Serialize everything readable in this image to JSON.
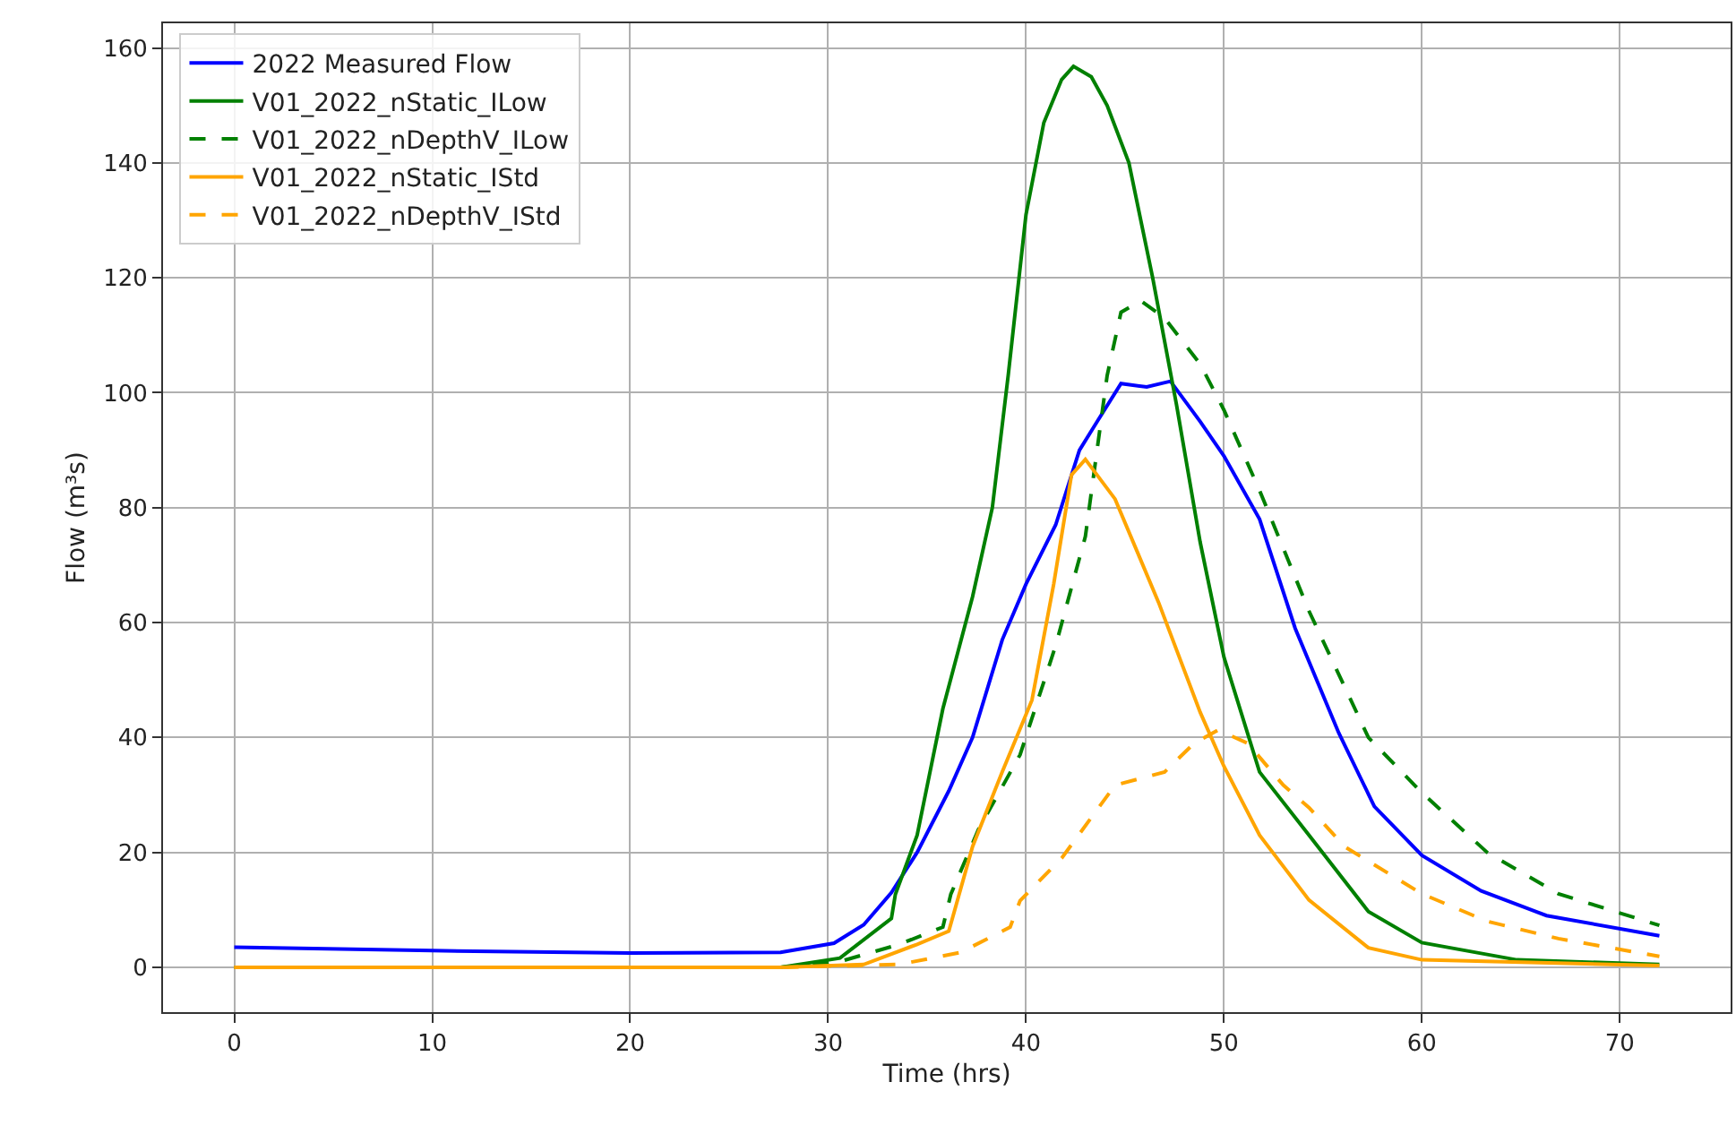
{
  "chart_data": {
    "type": "line",
    "xlabel": "Time (hrs)",
    "ylabel": "Flow (m³s)",
    "xlim": [
      -3.6,
      75.6
    ],
    "ylim": [
      -7.8,
      164.3
    ],
    "xticks": [
      0,
      10,
      20,
      30,
      40,
      50,
      60,
      70
    ],
    "yticks": [
      0,
      20,
      40,
      60,
      80,
      100,
      120,
      140,
      160
    ],
    "grid": true,
    "legend": "top left",
    "marker": "none",
    "series": [
      {
        "name": "2022 Measured Flow",
        "color": "#0000ff",
        "line_style": "solid",
        "x": [
          0,
          10,
          20,
          27.6,
          30.3,
          31.8,
          33.2,
          34.5,
          36.1,
          37.3,
          38.8,
          40,
          41.5,
          42.7,
          43.6,
          44.8,
          46.1,
          47.3,
          48.8,
          50,
          51.8,
          53.6,
          55.8,
          57.6,
          60,
          63,
          66.3,
          72
        ],
        "values": [
          3.5,
          2.9,
          2.5,
          2.6,
          4.2,
          7.4,
          13,
          20,
          30.7,
          40,
          57,
          66.7,
          77,
          90,
          95,
          101.6,
          101,
          102,
          95,
          89,
          78,
          59,
          40.8,
          28,
          19.5,
          13.3,
          9,
          5.5
        ]
      },
      {
        "name": "V01_2022_nStatic_ILow",
        "color": "#008000",
        "line_style": "solid",
        "x": [
          0,
          27.6,
          30.6,
          33.2,
          33.4,
          34.5,
          35.8,
          37.3,
          38.3,
          39.1,
          40,
          40.9,
          41.8,
          42.4,
          43.3,
          44.1,
          45.2,
          46.4,
          47.6,
          48.8,
          50,
          51.8,
          54.3,
          57.3,
          60,
          64.8,
          72
        ],
        "values": [
          0,
          0,
          1.6,
          8.5,
          12.7,
          23,
          45,
          64.5,
          80,
          103,
          131,
          147,
          154.5,
          156.8,
          155,
          150,
          140,
          120,
          98,
          74,
          54,
          34,
          23,
          9.7,
          4.3,
          1.3,
          0.5
        ]
      },
      {
        "name": "V01_2022_nDepthV_ILow",
        "color": "#008000",
        "line_style": "dashed",
        "x": [
          27.6,
          30.6,
          33.6,
          35.8,
          36.2,
          37.6,
          39.7,
          41.5,
          43,
          44.1,
          44.8,
          45.8,
          47,
          48.8,
          50,
          51.8,
          54.3,
          57.3,
          60,
          63.3,
          66.9,
          72
        ],
        "values": [
          0,
          1,
          4,
          7,
          12.7,
          24,
          37,
          56,
          75,
          103,
          114,
          116,
          113,
          105,
          97,
          83,
          62,
          40,
          30.4,
          20,
          12.8,
          7.3
        ]
      },
      {
        "name": "V01_2022_nStatic_IStd",
        "color": "#ffa500",
        "line_style": "solid",
        "x": [
          0,
          27.6,
          31.8,
          34.5,
          36.1,
          37.3,
          38.8,
          40.3,
          41.4,
          42.3,
          43,
          44.5,
          46.7,
          48.8,
          50,
          51.8,
          54.3,
          57.3,
          60,
          72
        ],
        "values": [
          0,
          0,
          0.5,
          4,
          6.3,
          21,
          34,
          46.5,
          66.7,
          85.7,
          88.4,
          81.5,
          63.5,
          44.4,
          35,
          23,
          11.7,
          3.4,
          1.3,
          0.3
        ]
      },
      {
        "name": "V01_2022_nDepthV_IStd",
        "color": "#ffa500",
        "line_style": "dashed",
        "x": [
          0,
          27.6,
          33.6,
          36.7,
          39.2,
          39.7,
          41.8,
          44.5,
          47,
          48.5,
          49.7,
          51.2,
          53,
          54.3,
          56.1,
          60,
          63.3,
          66.9,
          72
        ],
        "values": [
          0,
          0,
          0.5,
          2.6,
          7,
          11.6,
          19,
          31.7,
          34,
          39,
          41.3,
          39,
          31.7,
          27.8,
          21,
          12.8,
          8,
          5,
          1.9
        ]
      }
    ]
  }
}
